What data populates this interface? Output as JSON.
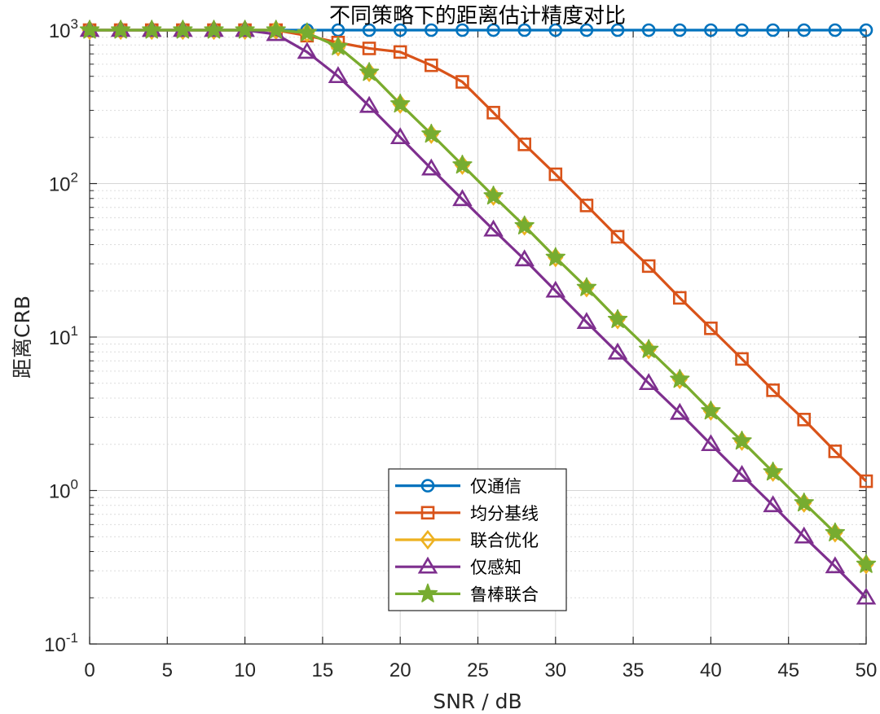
{
  "chart_data": {
    "type": "line",
    "title": "不同策略下的距离估计精度对比",
    "xlabel": "SNR / dB",
    "ylabel": "距离CRB",
    "yscale": "log",
    "xlim": [
      0,
      50
    ],
    "ylim": [
      0.1,
      1000
    ],
    "grid": true,
    "minor_grid": true,
    "legend_position": "bottom-center",
    "x": [
      0,
      2,
      4,
      6,
      8,
      10,
      12,
      14,
      16,
      18,
      20,
      22,
      24,
      26,
      28,
      30,
      32,
      34,
      36,
      38,
      40,
      42,
      44,
      46,
      48,
      50
    ],
    "xticks": [
      {
        "value": 0,
        "label": "0"
      },
      {
        "value": 5,
        "label": "5"
      },
      {
        "value": 10,
        "label": "10"
      },
      {
        "value": 15,
        "label": "15"
      },
      {
        "value": 20,
        "label": "20"
      },
      {
        "value": 25,
        "label": "25"
      },
      {
        "value": 30,
        "label": "30"
      },
      {
        "value": 35,
        "label": "35"
      },
      {
        "value": 40,
        "label": "40"
      },
      {
        "value": 45,
        "label": "45"
      },
      {
        "value": 50,
        "label": "50"
      }
    ],
    "yticks": [
      {
        "value": 0.1,
        "base": "10",
        "exp": "-1"
      },
      {
        "value": 1,
        "base": "10",
        "exp": "0"
      },
      {
        "value": 10,
        "base": "10",
        "exp": "1"
      },
      {
        "value": 100,
        "base": "10",
        "exp": "2"
      },
      {
        "value": 1000,
        "base": "10",
        "exp": "3"
      }
    ],
    "series": [
      {
        "name": "仅通信",
        "color": "#0072BD",
        "marker": "circle",
        "values": [
          1000,
          1000,
          1000,
          1000,
          1000,
          1000,
          1000,
          1000,
          1000,
          1000,
          1000,
          1000,
          1000,
          1000,
          1000,
          1000,
          1000,
          1000,
          1000,
          1000,
          1000,
          1000,
          1000,
          1000,
          1000,
          1000
        ]
      },
      {
        "name": "均分基线",
        "color": "#D95319",
        "marker": "square",
        "values": [
          1000,
          1000,
          1000,
          1000,
          1000,
          1000,
          1000,
          920,
          830,
          760,
          720,
          590,
          460,
          290,
          180,
          115,
          72,
          45,
          29,
          18,
          11.4,
          7.2,
          4.5,
          2.9,
          1.8,
          1.15
        ]
      },
      {
        "name": "联合优化",
        "color": "#EDB120",
        "marker": "diamond",
        "values": [
          1000,
          1000,
          1000,
          1000,
          1000,
          1000,
          1000,
          960,
          780,
          530,
          330,
          210,
          132,
          83,
          53,
          33,
          21,
          13,
          8.3,
          5.3,
          3.3,
          2.1,
          1.32,
          0.83,
          0.53,
          0.33
        ]
      },
      {
        "name": "仅感知",
        "color": "#7E2F8E",
        "marker": "triangle",
        "values": [
          1000,
          1000,
          1000,
          1000,
          1000,
          1000,
          940,
          720,
          500,
          320,
          200,
          125,
          79,
          50,
          32,
          20,
          12.5,
          7.9,
          5.0,
          3.2,
          2.0,
          1.26,
          0.8,
          0.5,
          0.32,
          0.2
        ]
      },
      {
        "name": "鲁棒联合",
        "color": "#77AC30",
        "marker": "star",
        "values": [
          1000,
          1000,
          1000,
          1000,
          1000,
          1000,
          1000,
          960,
          780,
          530,
          330,
          210,
          132,
          83,
          53,
          33,
          21,
          13,
          8.3,
          5.3,
          3.3,
          2.1,
          1.32,
          0.83,
          0.53,
          0.33
        ]
      }
    ]
  }
}
